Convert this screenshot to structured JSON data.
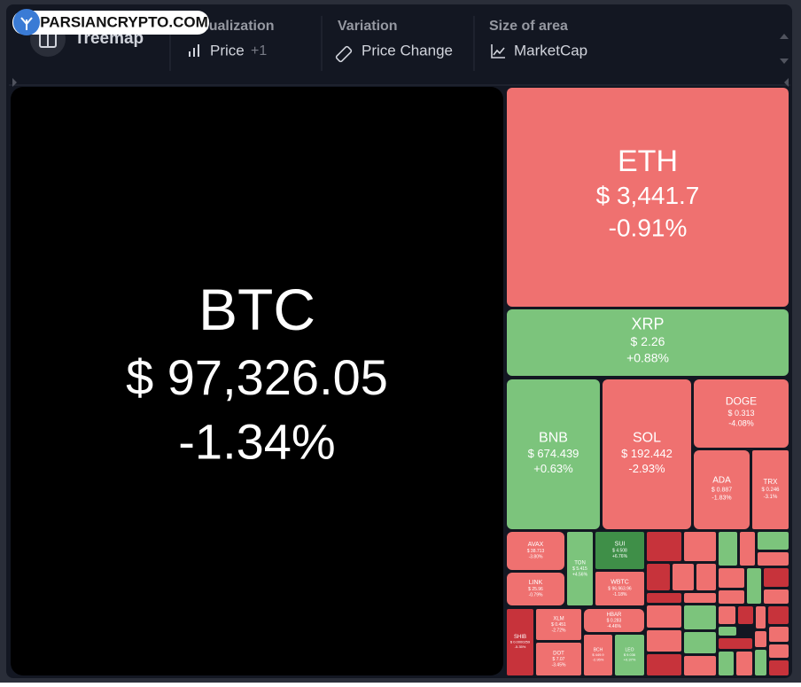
{
  "watermark": "PARSIANCRYPTO.COM",
  "toolbar": {
    "view": "Treemap",
    "groups": [
      {
        "label": "Visualization",
        "value": "Price",
        "extra": "+1"
      },
      {
        "label": "Variation",
        "value": "Price Change"
      },
      {
        "label": "Size of area",
        "value": "MarketCap"
      }
    ]
  },
  "tiles": [
    {
      "symbol": "BTC",
      "price": "$ 97,326.05",
      "change": "-1.34%",
      "color": "#000000"
    },
    {
      "symbol": "ETH",
      "price": "$ 3,441.7",
      "change": "-0.91%",
      "color": "#ef7170"
    },
    {
      "symbol": "XRP",
      "price": "$ 2.26",
      "change": "+0.88%",
      "color": "#7cc47c"
    },
    {
      "symbol": "BNB",
      "price": "$ 674.439",
      "change": "+0.63%",
      "color": "#7cc47c"
    },
    {
      "symbol": "SOL",
      "price": "$ 192.442",
      "change": "-2.93%",
      "color": "#ef7170"
    },
    {
      "symbol": "DOGE",
      "price": "$ 0.313",
      "change": "-4.08%",
      "color": "#ef7170"
    },
    {
      "symbol": "ADA",
      "price": "$ 0.887",
      "change": "-1.83%",
      "color": "#ef7170"
    },
    {
      "symbol": "TRX",
      "price": "$ 0.246",
      "change": "-3.1%",
      "color": "#ef7170"
    },
    {
      "symbol": "AVAX",
      "price": "$ 38.713",
      "change": "-3.80%",
      "color": "#ef7170"
    },
    {
      "symbol": "TON",
      "price": "$ 5.415",
      "change": "+4.56%",
      "color": "#7cc47c"
    },
    {
      "symbol": "SUI",
      "price": "$ 4.508",
      "change": "+6.76%",
      "color": "#3f8f48"
    },
    {
      "symbol": "LINK",
      "price": "$ 25.96",
      "change": "-0.79%",
      "color": "#ef7170"
    },
    {
      "symbol": "WBTC",
      "price": "$ 96,963.96",
      "change": "-1.18%",
      "color": "#ef7170"
    },
    {
      "symbol": "SHIB",
      "price": "$ 0.0000259",
      "change": "-5.35%",
      "color": "#c7333b"
    },
    {
      "symbol": "XLM",
      "price": "$ 0.451",
      "change": "-2.72%",
      "color": "#ef7170"
    },
    {
      "symbol": "DOT",
      "price": "$ 7.07",
      "change": "-3.45%",
      "color": "#ef7170"
    },
    {
      "symbol": "HBAR",
      "price": "$ 0.283",
      "change": "-4.46%",
      "color": "#ef7170"
    },
    {
      "symbol": "BCH",
      "price": "$ 449.9",
      "change": "-2.95%",
      "color": "#ef7170"
    },
    {
      "symbol": "LEO",
      "price": "$ 9.036",
      "change": "+0.37%",
      "color": "#7cc47c"
    }
  ]
}
